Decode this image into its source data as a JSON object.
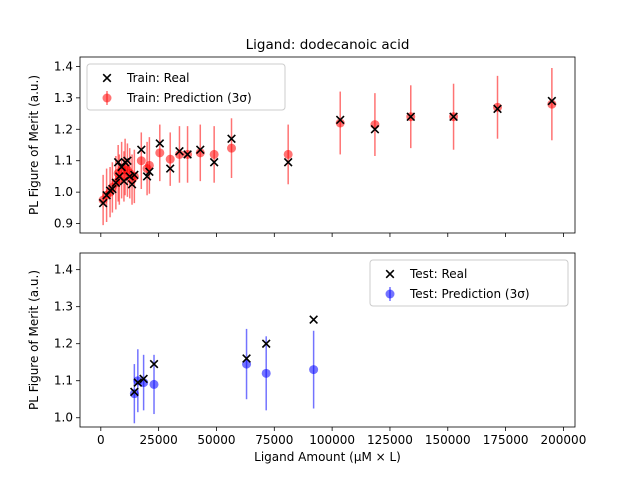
{
  "chart_data": [
    {
      "type": "scatter",
      "title": "Ligand: dodecanoic acid",
      "xlabel": "",
      "ylabel": "PL Figure of Merit (a.u.)",
      "xlim": [
        -9000,
        205000
      ],
      "ylim": [
        0.87,
        1.43
      ],
      "yticks": [
        "0.9",
        "1.0",
        "1.1",
        "1.2",
        "1.3",
        "1.4"
      ],
      "legend_position": "upper-left",
      "series": [
        {
          "name": "Train: Real",
          "marker": "x",
          "color": "#000000",
          "points": [
            [
              1000,
              0.965
            ],
            [
              2500,
              0.99
            ],
            [
              4000,
              1.005
            ],
            [
              5000,
              1.01
            ],
            [
              6500,
              1.03
            ],
            [
              7500,
              1.095
            ],
            [
              8000,
              1.05
            ],
            [
              9000,
              1.08
            ],
            [
              10000,
              1.035
            ],
            [
              10500,
              1.095
            ],
            [
              11500,
              1.1
            ],
            [
              12500,
              1.05
            ],
            [
              13500,
              1.025
            ],
            [
              14500,
              1.055
            ],
            [
              17500,
              1.135
            ],
            [
              20000,
              1.05
            ],
            [
              21000,
              1.065
            ],
            [
              25500,
              1.155
            ],
            [
              30000,
              1.075
            ],
            [
              34000,
              1.13
            ],
            [
              37500,
              1.12
            ],
            [
              43000,
              1.135
            ],
            [
              49000,
              1.095
            ],
            [
              56500,
              1.17
            ],
            [
              81000,
              1.095
            ],
            [
              103500,
              1.23
            ],
            [
              118500,
              1.2
            ],
            [
              134000,
              1.24
            ],
            [
              152500,
              1.24
            ],
            [
              171500,
              1.265
            ],
            [
              195000,
              1.29
            ]
          ]
        },
        {
          "name": "Train: Prediction (3σ)",
          "marker": "o",
          "color": "#ff0000",
          "points": [
            [
              1000,
              0.975,
              0.08
            ],
            [
              2500,
              0.99,
              0.085
            ],
            [
              4000,
              1.0,
              0.08
            ],
            [
              5000,
              1.015,
              0.08
            ],
            [
              6500,
              1.03,
              0.085
            ],
            [
              7500,
              1.06,
              0.09
            ],
            [
              8000,
              1.04,
              0.08
            ],
            [
              9000,
              1.07,
              0.09
            ],
            [
              10000,
              1.05,
              0.08
            ],
            [
              10500,
              1.08,
              0.09
            ],
            [
              11500,
              1.07,
              0.085
            ],
            [
              12500,
              1.06,
              0.08
            ],
            [
              13500,
              1.04,
              0.08
            ],
            [
              14500,
              1.05,
              0.085
            ],
            [
              17500,
              1.1,
              0.09
            ],
            [
              20000,
              1.075,
              0.085
            ],
            [
              21000,
              1.085,
              0.09
            ],
            [
              25500,
              1.125,
              0.09
            ],
            [
              30000,
              1.105,
              0.085
            ],
            [
              34000,
              1.12,
              0.09
            ],
            [
              37500,
              1.12,
              0.09
            ],
            [
              43000,
              1.125,
              0.09
            ],
            [
              49000,
              1.12,
              0.09
            ],
            [
              56500,
              1.14,
              0.095
            ],
            [
              81000,
              1.12,
              0.095
            ],
            [
              103500,
              1.22,
              0.1
            ],
            [
              118500,
              1.215,
              0.1
            ],
            [
              134000,
              1.24,
              0.1
            ],
            [
              152500,
              1.24,
              0.105
            ],
            [
              171500,
              1.27,
              0.1
            ],
            [
              195000,
              1.28,
              0.115
            ]
          ]
        }
      ]
    },
    {
      "type": "scatter",
      "title": "",
      "xlabel": "Ligand Amount (μM × L)",
      "ylabel": "PL Figure of Merit (a.u.)",
      "xlim": [
        -9000,
        205000
      ],
      "ylim": [
        0.975,
        1.445
      ],
      "xticks": [
        "0",
        "25000",
        "50000",
        "75000",
        "100000",
        "125000",
        "150000",
        "175000",
        "200000"
      ],
      "yticks": [
        "1.0",
        "1.1",
        "1.2",
        "1.3",
        "1.4"
      ],
      "legend_position": "upper-right",
      "series": [
        {
          "name": "Test: Real",
          "marker": "x",
          "color": "#000000",
          "points": [
            [
              14500,
              1.07
            ],
            [
              16000,
              1.095
            ],
            [
              18500,
              1.105
            ],
            [
              23000,
              1.145
            ],
            [
              63000,
              1.16
            ],
            [
              71500,
              1.2
            ],
            [
              92000,
              1.265
            ]
          ]
        },
        {
          "name": "Test: Prediction (3σ)",
          "marker": "o",
          "color": "#0000ff",
          "points": [
            [
              14500,
              1.065,
              0.08
            ],
            [
              16000,
              1.1,
              0.085
            ],
            [
              18500,
              1.095,
              0.075
            ],
            [
              23000,
              1.09,
              0.08
            ],
            [
              63000,
              1.145,
              0.095
            ],
            [
              71500,
              1.12,
              0.1
            ],
            [
              92000,
              1.13,
              0.105
            ]
          ]
        }
      ]
    }
  ]
}
